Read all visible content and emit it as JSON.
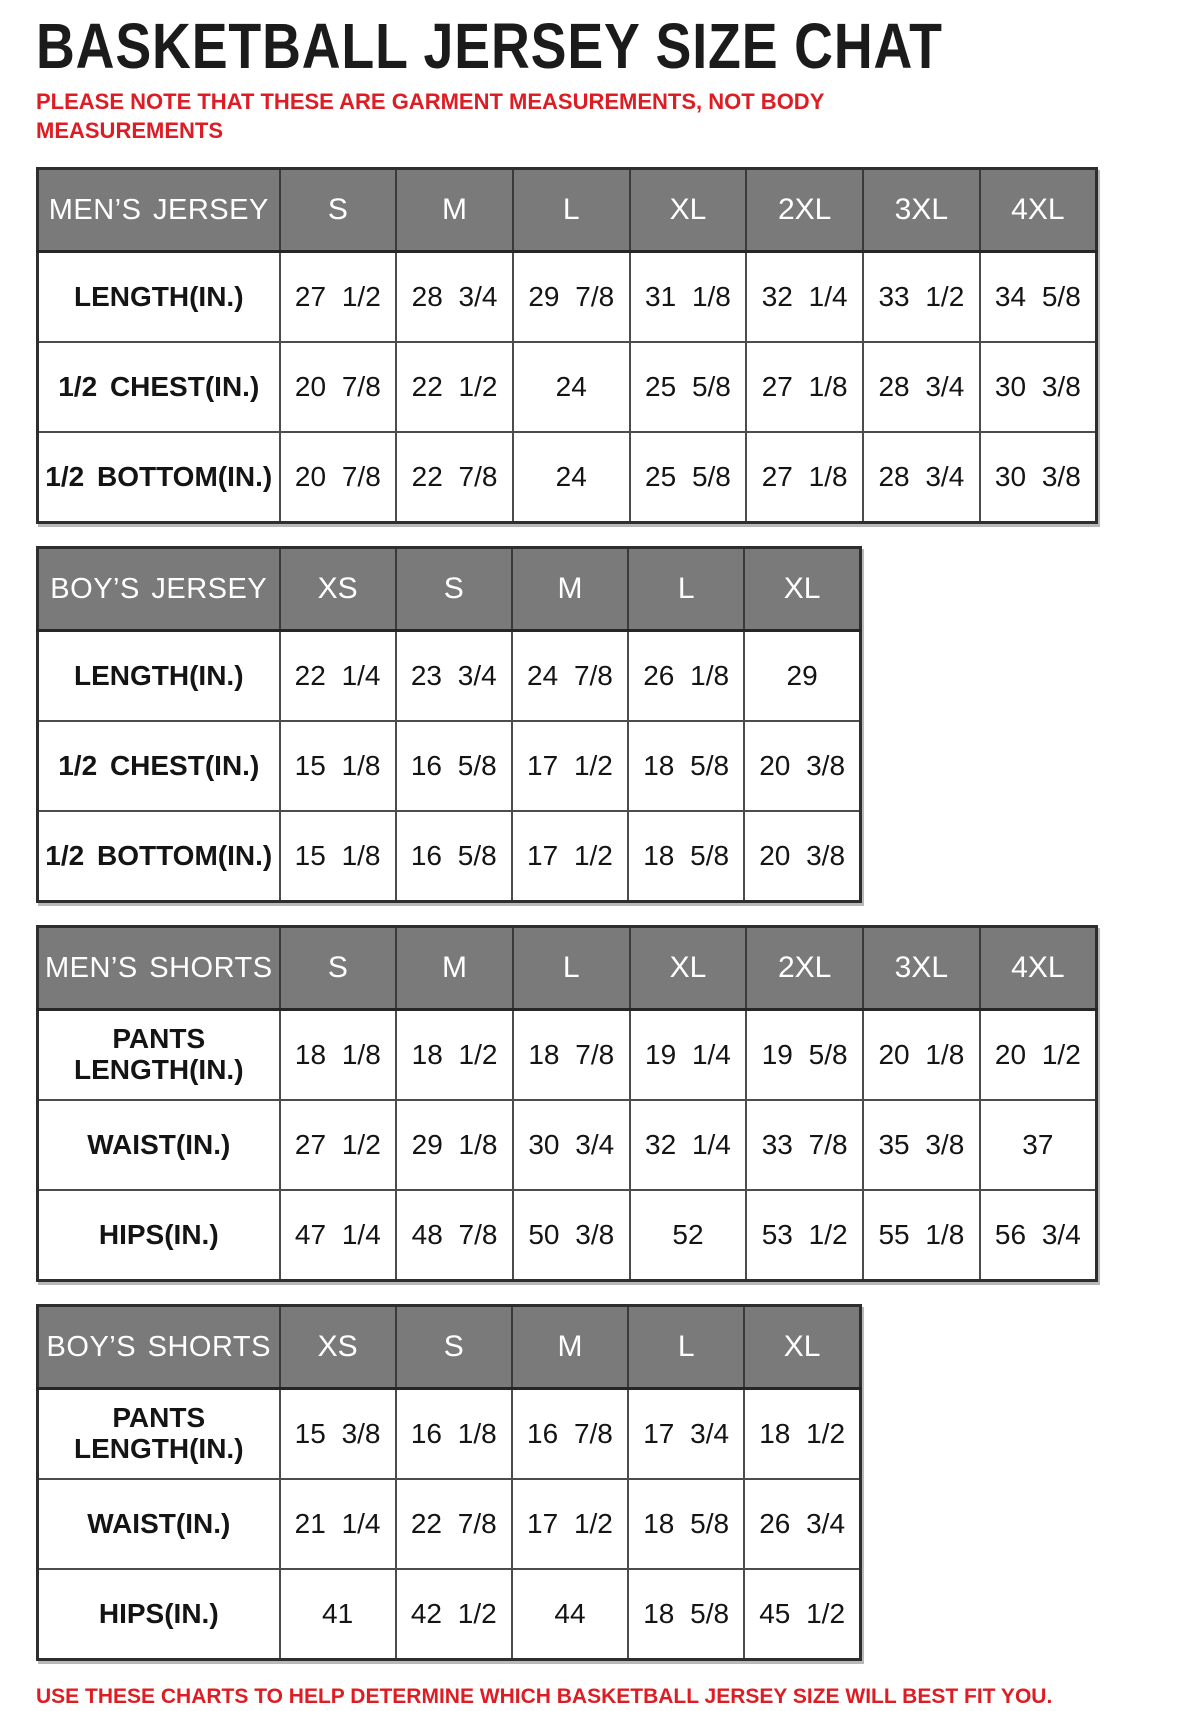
{
  "page": {
    "title": "BASKETBALL JERSEY SIZE CHAT",
    "note_top": "PLEASE NOTE THAT THESE ARE GARMENT MEASUREMENTS, NOT BODY MEASUREMENTS",
    "note_bottom": "USE THESE CHARTS TO HELP DETERMINE WHICH BASKETBALL JERSEY SIZE WILL BEST FIT YOU."
  },
  "colors": {
    "header_bg": "#7a7a7a",
    "header_text": "#ffffff",
    "note_red": "#dd1d23",
    "cell_border": "#4c4c4c",
    "title_text": "#1b1b1b"
  },
  "tables": [
    {
      "name": "MEN’S JERSEY",
      "sizes": [
        "S",
        "M",
        "L",
        "XL",
        "2XL",
        "3XL",
        "4XL"
      ],
      "rows": [
        {
          "label": "LENGTH(IN.)",
          "values": [
            "27 1/2",
            "28 3/4",
            "29 7/8",
            "31 1/8",
            "32 1/4",
            "33 1/2",
            "34 5/8"
          ]
        },
        {
          "label": "1/2 CHEST(IN.)",
          "values": [
            "20 7/8",
            "22 1/2",
            "24",
            "25 5/8",
            "27 1/8",
            "28 3/4",
            "30 3/8"
          ]
        },
        {
          "label": "1/2 BOTTOM(IN.)",
          "values": [
            "20 7/8",
            "22 7/8",
            "24",
            "25 5/8",
            "27 1/8",
            "28 3/4",
            "30 3/8"
          ]
        }
      ]
    },
    {
      "name": "BOY’S JERSEY",
      "sizes": [
        "XS",
        "S",
        "M",
        "L",
        "XL"
      ],
      "rows": [
        {
          "label": "LENGTH(IN.)",
          "values": [
            "22 1/4",
            "23 3/4",
            "24 7/8",
            "26 1/8",
            "29"
          ]
        },
        {
          "label": "1/2 CHEST(IN.)",
          "values": [
            "15 1/8",
            "16 5/8",
            "17 1/2",
            "18 5/8",
            "20 3/8"
          ]
        },
        {
          "label": "1/2 BOTTOM(IN.)",
          "values": [
            "15 1/8",
            "16 5/8",
            "17 1/2",
            "18 5/8",
            "20 3/8"
          ]
        }
      ]
    },
    {
      "name": "MEN’S SHORTS",
      "sizes": [
        "S",
        "M",
        "L",
        "XL",
        "2XL",
        "3XL",
        "4XL"
      ],
      "rows": [
        {
          "label": "PANTS LENGTH(IN.)",
          "values": [
            "18 1/8",
            "18 1/2",
            "18 7/8",
            "19 1/4",
            "19 5/8",
            "20 1/8",
            "20 1/2"
          ]
        },
        {
          "label": "WAIST(IN.)",
          "values": [
            "27 1/2",
            "29 1/8",
            "30 3/4",
            "32 1/4",
            "33 7/8",
            "35 3/8",
            "37"
          ]
        },
        {
          "label": "HIPS(IN.)",
          "values": [
            "47 1/4",
            "48 7/8",
            "50 3/8",
            "52",
            "53 1/2",
            "55 1/8",
            "56 3/4"
          ]
        }
      ]
    },
    {
      "name": "BOY’S SHORTS",
      "sizes": [
        "XS",
        "S",
        "M",
        "L",
        "XL"
      ],
      "rows": [
        {
          "label": "PANTS LENGTH(IN.)",
          "values": [
            "15 3/8",
            "16 1/8",
            "16 7/8",
            "17 3/4",
            "18 1/2"
          ]
        },
        {
          "label": "WAIST(IN.)",
          "values": [
            "21 1/4",
            "22 7/8",
            "17 1/2",
            "18 5/8",
            "26 3/4"
          ]
        },
        {
          "label": "HIPS(IN.)",
          "values": [
            "41",
            "42 1/2",
            "44",
            "18 5/8",
            "45 1/2"
          ]
        }
      ]
    }
  ]
}
